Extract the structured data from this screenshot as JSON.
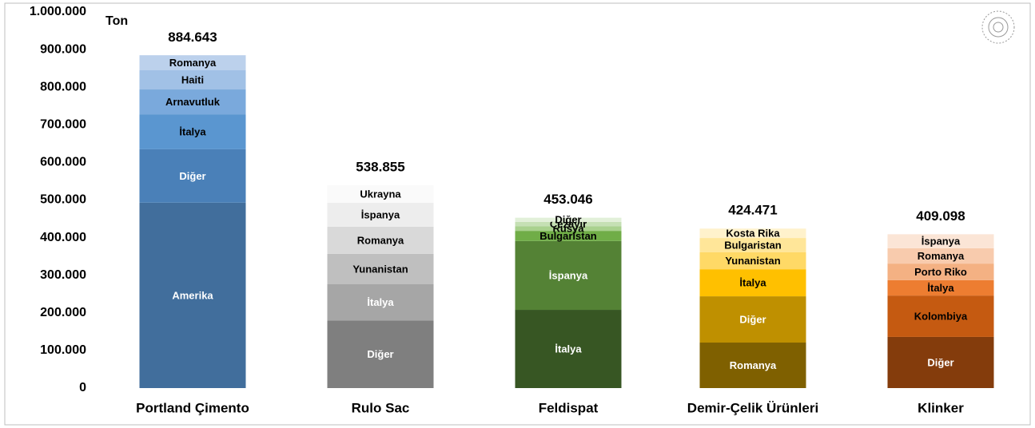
{
  "chart_data": {
    "type": "stacked-bar",
    "unit_label": "Ton",
    "ylim": [
      0,
      1000000
    ],
    "yticks": [
      0,
      {
        "value": 100000,
        "label": "100.000"
      },
      {
        "value": 200000,
        "label": "200.000"
      },
      {
        "value": 300000,
        "label": "300.000"
      },
      {
        "value": 400000,
        "label": "400.000"
      },
      {
        "value": 500000,
        "label": "500.000"
      },
      {
        "value": 600000,
        "label": "600.000"
      },
      {
        "value": 700000,
        "label": "700.000"
      },
      {
        "value": 800000,
        "label": "800.000"
      },
      {
        "value": 900000,
        "label": "900.000"
      },
      {
        "value": 1000000,
        "label": "1.000.000"
      }
    ],
    "bars": [
      {
        "category": "Portland Çimento",
        "total": 884643,
        "total_label": "884.643",
        "segments": [
          {
            "name": "Amerika",
            "value": 493000,
            "color": "#416e9c"
          },
          {
            "name": "Diğer",
            "value": 142000,
            "color": "#4a80b8"
          },
          {
            "name": "İtalya",
            "value": 93000,
            "color": "#5a96d0"
          },
          {
            "name": "Arnavutluk",
            "value": 66000,
            "color": "#7aa9dc"
          },
          {
            "name": "Haiti",
            "value": 51000,
            "color": "#a1c1e6"
          },
          {
            "name": "Romanya",
            "value": 40000,
            "color": "#bcd1ec"
          }
        ]
      },
      {
        "category": "Rulo Sac",
        "total": 538855,
        "total_label": "538.855",
        "segments": [
          {
            "name": "Diğer",
            "value": 180000,
            "color": "#7f7f7f"
          },
          {
            "name": "İtalya",
            "value": 96000,
            "color": "#a6a6a6"
          },
          {
            "name": "Yunanistan",
            "value": 81000,
            "color": "#bfbfbf"
          },
          {
            "name": "Romanya",
            "value": 72000,
            "color": "#d9d9d9"
          },
          {
            "name": "İspanya",
            "value": 64000,
            "color": "#ededed"
          },
          {
            "name": "Ukrayna",
            "value": 46000,
            "color": "#fafafa"
          }
        ]
      },
      {
        "category": "Feldispat",
        "total": 453046,
        "total_label": "453.046",
        "segments": [
          {
            "name": "İtalya",
            "value": 208000,
            "color": "#375623"
          },
          {
            "name": "İspanya",
            "value": 183000,
            "color": "#548235"
          },
          {
            "name": "Bulgaristan",
            "value": 27000,
            "color": "#70ad47"
          },
          {
            "name": "Rusya",
            "value": 12000,
            "color": "#a9d18e"
          },
          {
            "name": "Cezayir",
            "value": 12000,
            "color": "#c5e0b4"
          },
          {
            "name": "Diğer",
            "value": 11000,
            "color": "#e2f0d9"
          }
        ]
      },
      {
        "category": "Demir-Çelik Ürünleri",
        "total": 424471,
        "total_label": "424.471",
        "segments": [
          {
            "name": "Romanya",
            "value": 121000,
            "color": "#7f6000"
          },
          {
            "name": "Diğer",
            "value": 123000,
            "color": "#bf9000"
          },
          {
            "name": "İtalya",
            "value": 72000,
            "color": "#ffc000"
          },
          {
            "name": "Yunanistan",
            "value": 45000,
            "color": "#ffd966"
          },
          {
            "name": "Bulgaristan",
            "value": 38000,
            "color": "#ffe699"
          },
          {
            "name": "Kosta Rika",
            "value": 25000,
            "color": "#fff2cc"
          }
        ]
      },
      {
        "category": "Klinker",
        "total": 409098,
        "total_label": "409.098",
        "segments": [
          {
            "name": "Diğer",
            "value": 136000,
            "color": "#843c0c"
          },
          {
            "name": "Kolombiya",
            "value": 110000,
            "color": "#c55a11"
          },
          {
            "name": "İtalya",
            "value": 41000,
            "color": "#ed7d31"
          },
          {
            "name": "Porto Riko",
            "value": 44000,
            "color": "#f4b183"
          },
          {
            "name": "Romanya",
            "value": 41000,
            "color": "#f8cbad"
          },
          {
            "name": "İspanya",
            "value": 37000,
            "color": "#fbe5d6"
          }
        ]
      }
    ]
  }
}
